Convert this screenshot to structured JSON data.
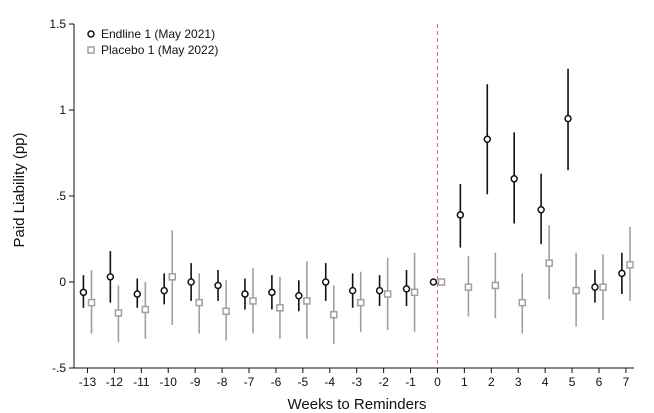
{
  "chart_data": {
    "type": "scatter",
    "subtype": "coefficient plot with 95% confidence intervals",
    "title": "",
    "xlabel": "Weeks to Reminders",
    "ylabel": "Paid Liability (pp)",
    "xlim": [
      -13.5,
      7.3
    ],
    "ylim": [
      -0.5,
      1.5
    ],
    "x_ticks": [
      -13,
      -12,
      -11,
      -10,
      -9,
      -8,
      -7,
      -6,
      -5,
      -4,
      -3,
      -2,
      -1,
      0,
      1,
      2,
      3,
      4,
      5,
      6,
      7
    ],
    "y_ticks": [
      {
        "value": -0.5,
        "label": "-.5"
      },
      {
        "value": 0,
        "label": "0"
      },
      {
        "value": 0.5,
        "label": ".5"
      },
      {
        "value": 1,
        "label": "1"
      },
      {
        "value": 1.5,
        "label": "1.5"
      }
    ],
    "grid": false,
    "legend_position": "top-left",
    "reference_line": {
      "x": 0,
      "style": "dashed",
      "color": "#e0607a"
    },
    "series": [
      {
        "name": "Endline 1 (May 2021)",
        "marker": "hollow-circle",
        "color": "#111111",
        "offset": -0.15,
        "points": [
          {
            "x": -13,
            "y": -0.06,
            "lo": -0.15,
            "hi": 0.04
          },
          {
            "x": -12,
            "y": 0.03,
            "lo": -0.12,
            "hi": 0.18
          },
          {
            "x": -11,
            "y": -0.07,
            "lo": -0.15,
            "hi": 0.02
          },
          {
            "x": -10,
            "y": -0.05,
            "lo": -0.13,
            "hi": 0.05
          },
          {
            "x": -9,
            "y": 0.0,
            "lo": -0.11,
            "hi": 0.11
          },
          {
            "x": -8,
            "y": -0.02,
            "lo": -0.11,
            "hi": 0.07
          },
          {
            "x": -7,
            "y": -0.07,
            "lo": -0.16,
            "hi": 0.02
          },
          {
            "x": -6,
            "y": -0.06,
            "lo": -0.16,
            "hi": 0.04
          },
          {
            "x": -5,
            "y": -0.08,
            "lo": -0.17,
            "hi": 0.01
          },
          {
            "x": -4,
            "y": 0.0,
            "lo": -0.11,
            "hi": 0.11
          },
          {
            "x": -3,
            "y": -0.05,
            "lo": -0.15,
            "hi": 0.05
          },
          {
            "x": -2,
            "y": -0.05,
            "lo": -0.14,
            "hi": 0.04
          },
          {
            "x": -1,
            "y": -0.04,
            "lo": -0.14,
            "hi": 0.07
          },
          {
            "x": 0,
            "y": 0.0,
            "lo": 0.0,
            "hi": 0.0
          },
          {
            "x": 1,
            "y": 0.39,
            "lo": 0.2,
            "hi": 0.57
          },
          {
            "x": 2,
            "y": 0.83,
            "lo": 0.51,
            "hi": 1.15
          },
          {
            "x": 3,
            "y": 0.6,
            "lo": 0.34,
            "hi": 0.87
          },
          {
            "x": 4,
            "y": 0.42,
            "lo": 0.22,
            "hi": 0.63
          },
          {
            "x": 5,
            "y": 0.95,
            "lo": 0.65,
            "hi": 1.24
          },
          {
            "x": 6,
            "y": -0.03,
            "lo": -0.12,
            "hi": 0.07
          },
          {
            "x": 7,
            "y": 0.05,
            "lo": -0.07,
            "hi": 0.17
          }
        ]
      },
      {
        "name": "Placebo 1 (May 2022)",
        "marker": "hollow-square",
        "color": "#a0a0a0",
        "offset": 0.15,
        "points": [
          {
            "x": -13,
            "y": -0.12,
            "lo": -0.3,
            "hi": 0.07
          },
          {
            "x": -12,
            "y": -0.18,
            "lo": -0.35,
            "hi": -0.02
          },
          {
            "x": -11,
            "y": -0.16,
            "lo": -0.33,
            "hi": 0.0
          },
          {
            "x": -10,
            "y": 0.03,
            "lo": -0.25,
            "hi": 0.3
          },
          {
            "x": -9,
            "y": -0.12,
            "lo": -0.3,
            "hi": 0.05
          },
          {
            "x": -8,
            "y": -0.17,
            "lo": -0.34,
            "hi": 0.01
          },
          {
            "x": -7,
            "y": -0.11,
            "lo": -0.3,
            "hi": 0.08
          },
          {
            "x": -6,
            "y": -0.15,
            "lo": -0.33,
            "hi": 0.03
          },
          {
            "x": -5,
            "y": -0.11,
            "lo": -0.33,
            "hi": 0.12
          },
          {
            "x": -4,
            "y": -0.19,
            "lo": -0.36,
            "hi": -0.02
          },
          {
            "x": -3,
            "y": -0.12,
            "lo": -0.29,
            "hi": 0.06
          },
          {
            "x": -2,
            "y": -0.07,
            "lo": -0.28,
            "hi": 0.14
          },
          {
            "x": -1,
            "y": -0.06,
            "lo": -0.29,
            "hi": 0.17
          },
          {
            "x": 0,
            "y": 0.0,
            "lo": 0.0,
            "hi": 0.0
          },
          {
            "x": 1,
            "y": -0.03,
            "lo": -0.2,
            "hi": 0.15
          },
          {
            "x": 2,
            "y": -0.02,
            "lo": -0.21,
            "hi": 0.17
          },
          {
            "x": 3,
            "y": -0.12,
            "lo": -0.3,
            "hi": 0.05
          },
          {
            "x": 4,
            "y": 0.11,
            "lo": -0.1,
            "hi": 0.33
          },
          {
            "x": 5,
            "y": -0.05,
            "lo": -0.26,
            "hi": 0.17
          },
          {
            "x": 6,
            "y": -0.03,
            "lo": -0.22,
            "hi": 0.16
          },
          {
            "x": 7,
            "y": 0.1,
            "lo": -0.11,
            "hi": 0.32
          }
        ]
      }
    ]
  }
}
